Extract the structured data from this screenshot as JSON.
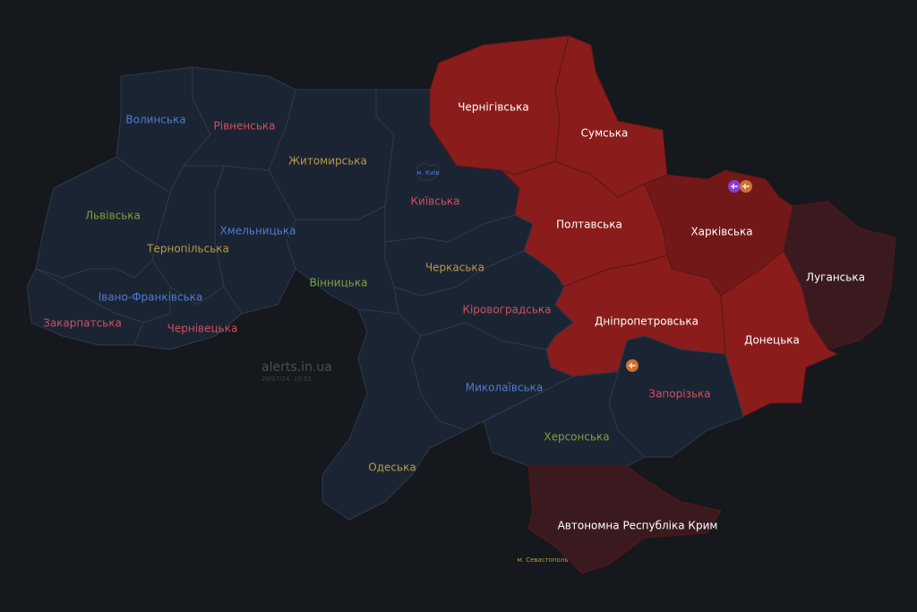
{
  "watermark": {
    "site": "alerts.in.ua",
    "timestamp": "28/07/24, 10:55"
  },
  "colors": {
    "background": "#15181d",
    "no_alert": "#1b2433",
    "border": "#2c3a4e",
    "alert": "#8a1c1c",
    "alert_dark": "#731818",
    "occupied": "#3a1a1f",
    "label_blue": "#4f7bd0",
    "label_red": "#d0505f",
    "label_green": "#7ba23c",
    "label_yellow": "#b99a45",
    "label_white": "#ffffff"
  },
  "regions": [
    {
      "id": "volyn",
      "name": "Волинська",
      "status": "none",
      "label_color": "label_blue"
    },
    {
      "id": "rivne",
      "name": "Рівненська",
      "status": "none",
      "label_color": "label_red"
    },
    {
      "id": "zhytomyr",
      "name": "Житомирська",
      "status": "none",
      "label_color": "label_yellow"
    },
    {
      "id": "kyiv_obl",
      "name": "Київська",
      "status": "none",
      "label_color": "label_red"
    },
    {
      "id": "chernihiv",
      "name": "Чернігівська",
      "status": "alert",
      "label_color": "label_white"
    },
    {
      "id": "sumy",
      "name": "Сумська",
      "status": "alert",
      "label_color": "label_white"
    },
    {
      "id": "poltava",
      "name": "Полтавська",
      "status": "alert",
      "label_color": "label_white"
    },
    {
      "id": "kharkiv",
      "name": "Харківська",
      "status": "alert_dark",
      "label_color": "label_white"
    },
    {
      "id": "luhansk",
      "name": "Луганська",
      "status": "occupied",
      "label_color": "label_white"
    },
    {
      "id": "donetsk",
      "name": "Донецька",
      "status": "alert",
      "label_color": "label_white"
    },
    {
      "id": "dnipro",
      "name": "Дніпропетровська",
      "status": "alert",
      "label_color": "label_white"
    },
    {
      "id": "zaporizhzhia",
      "name": "Запорізька",
      "status": "none",
      "label_color": "label_red"
    },
    {
      "id": "kherson",
      "name": "Херсонська",
      "status": "none",
      "label_color": "label_green"
    },
    {
      "id": "crimea",
      "name": "Автономна Республіка Крим",
      "status": "occupied",
      "label_color": "label_white"
    },
    {
      "id": "mykolaiv",
      "name": "Миколаївська",
      "status": "none",
      "label_color": "label_blue"
    },
    {
      "id": "odesa",
      "name": "Одеська",
      "status": "none",
      "label_color": "label_yellow"
    },
    {
      "id": "kirovohrad",
      "name": "Кіровоградська",
      "status": "none",
      "label_color": "label_red"
    },
    {
      "id": "cherkasy",
      "name": "Черкаська",
      "status": "none",
      "label_color": "label_yellow"
    },
    {
      "id": "vinnytsia",
      "name": "Вінницька",
      "status": "none",
      "label_color": "label_green"
    },
    {
      "id": "khmelnytskyi",
      "name": "Хмельницька",
      "status": "none",
      "label_color": "label_blue"
    },
    {
      "id": "ternopil",
      "name": "Тернопільська",
      "status": "none",
      "label_color": "label_yellow"
    },
    {
      "id": "lviv",
      "name": "Львівська",
      "status": "none",
      "label_color": "label_green"
    },
    {
      "id": "ivano_frankivsk",
      "name": "Івано-Франківська",
      "status": "none",
      "label_color": "label_blue"
    },
    {
      "id": "zakarpattia",
      "name": "Закарпатська",
      "status": "none",
      "label_color": "label_red"
    },
    {
      "id": "chernivtsi",
      "name": "Чернівецька",
      "status": "none",
      "label_color": "label_red"
    }
  ],
  "cities": [
    {
      "id": "kyiv_city",
      "name": "м. Київ",
      "label_color": "label_blue"
    },
    {
      "id": "sevastopol",
      "name": "м. Севастополь",
      "label_color": "label_yellow"
    }
  ],
  "threat_markers": [
    {
      "region": "kharkiv",
      "icons": [
        "drone-icon",
        "artillery-icon"
      ],
      "colors": [
        "#8a3ad8",
        "#d0702e"
      ]
    },
    {
      "region": "dnipro",
      "icons": [
        "artillery-icon"
      ],
      "colors": [
        "#d0702e"
      ]
    }
  ]
}
